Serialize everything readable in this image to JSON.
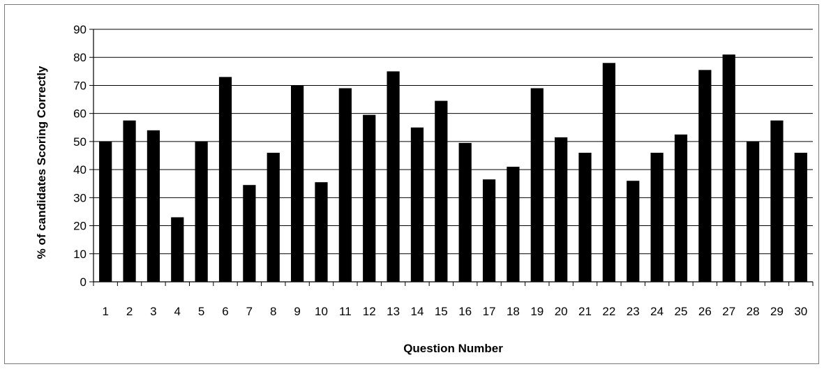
{
  "chart_data": {
    "type": "bar",
    "title": "",
    "xlabel": "Question Number",
    "ylabel": "% of candidates Scoring Correctly",
    "ylim": [
      0,
      90
    ],
    "yticks": [
      0,
      10,
      20,
      30,
      40,
      50,
      60,
      70,
      80,
      90
    ],
    "grid": true,
    "legend": "none",
    "bar_color": "#000000",
    "categories": [
      "1",
      "2",
      "3",
      "4",
      "5",
      "6",
      "7",
      "8",
      "9",
      "10",
      "11",
      "12",
      "13",
      "14",
      "15",
      "16",
      "17",
      "18",
      "19",
      "20",
      "21",
      "22",
      "23",
      "24",
      "25",
      "26",
      "27",
      "28",
      "29",
      "30"
    ],
    "values": [
      50,
      57.5,
      54,
      23,
      50,
      73,
      34.5,
      46,
      70,
      35.5,
      69,
      59.5,
      75,
      55,
      64.5,
      49.5,
      36.5,
      41,
      69,
      51.5,
      46,
      78,
      36,
      46,
      52.5,
      75.5,
      81,
      50,
      57.5,
      46
    ]
  }
}
